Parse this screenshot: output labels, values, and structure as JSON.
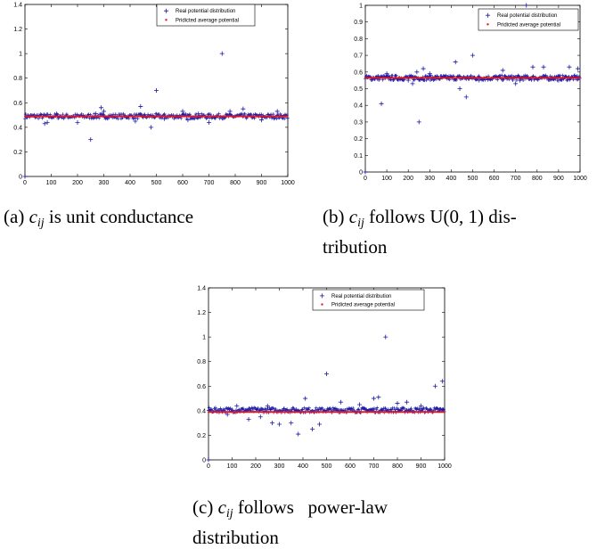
{
  "colors": {
    "real": "#1a1aa6",
    "predicted": "#e8141e",
    "axis": "#000000",
    "legend_border": "#000000"
  },
  "legend": {
    "real_label": "Real potential distribution",
    "predicted_label": "Pridicted average potential"
  },
  "captions": [
    {
      "tag": "(a)",
      "var": "c",
      "sub": "ij",
      "text": "is unit conductance",
      "text2": ""
    },
    {
      "tag": "(b)",
      "var": "c",
      "sub": "ij",
      "text": "follows U(0, 1) dis-",
      "text2": "tribution"
    },
    {
      "tag": "(c)",
      "var": "c",
      "sub": "ij",
      "text": "follows   power-law",
      "text2": "distribution"
    }
  ],
  "chart_data": [
    {
      "type": "scatter",
      "title": "",
      "xlabel": "",
      "ylabel": "",
      "xlim": [
        0,
        1000
      ],
      "ylim": [
        0,
        1.4
      ],
      "xticks": [
        0,
        100,
        200,
        300,
        400,
        500,
        600,
        700,
        800,
        900,
        1000
      ],
      "yticks": [
        0,
        0.2,
        0.4,
        0.6,
        0.8,
        1,
        1.2,
        1.4
      ],
      "ytick_labels": [
        "0",
        "0.2",
        "0.4",
        "0.6",
        "0.8",
        "1",
        "1.2",
        "1.4"
      ],
      "legend_position": "top-right",
      "series": [
        {
          "name": "Real potential distribution",
          "marker": "plus",
          "band": {
            "x_range": [
              0,
              1000
            ],
            "center": 0.49,
            "spread": 0.02
          },
          "points": [
            [
              0,
              0
            ],
            [
              75,
              0.43
            ],
            [
              85,
              0.44
            ],
            [
              120,
              0.51
            ],
            [
              200,
              0.44
            ],
            [
              250,
              0.3
            ],
            [
              270,
              0.51
            ],
            [
              290,
              0.56
            ],
            [
              300,
              0.53
            ],
            [
              420,
              0.45
            ],
            [
              440,
              0.57
            ],
            [
              480,
              0.4
            ],
            [
              500,
              0.7
            ],
            [
              530,
              0.47
            ],
            [
              600,
              0.53
            ],
            [
              620,
              0.46
            ],
            [
              660,
              0.51
            ],
            [
              700,
              0.44
            ],
            [
              750,
              1.0
            ],
            [
              780,
              0.53
            ],
            [
              830,
              0.55
            ],
            [
              900,
              0.46
            ],
            [
              960,
              0.53
            ],
            [
              990,
              0.5
            ]
          ]
        },
        {
          "name": "Pridicted average potential",
          "marker": "dot",
          "line": {
            "x_range": [
              0,
              1000
            ],
            "y": 0.49
          }
        }
      ]
    },
    {
      "type": "scatter",
      "title": "",
      "xlabel": "",
      "ylabel": "",
      "xlim": [
        0,
        1000
      ],
      "ylim": [
        0,
        1
      ],
      "xticks": [
        0,
        100,
        200,
        300,
        400,
        500,
        600,
        700,
        800,
        900,
        1000
      ],
      "yticks": [
        0,
        0.1,
        0.2,
        0.3,
        0.4,
        0.5,
        0.6,
        0.7,
        0.8,
        0.9,
        1
      ],
      "ytick_labels": [
        "0",
        "0.1",
        "0.2",
        "0.3",
        "0.4",
        "0.5",
        "0.6",
        "0.7",
        "0.8",
        "0.9",
        "1"
      ],
      "legend_position": "top-right",
      "series": [
        {
          "name": "Real potential distribution",
          "marker": "plus",
          "band": {
            "x_range": [
              0,
              1000
            ],
            "center": 0.565,
            "spread": 0.015
          },
          "points": [
            [
              0,
              0
            ],
            [
              75,
              0.41
            ],
            [
              100,
              0.59
            ],
            [
              200,
              0.55
            ],
            [
              220,
              0.53
            ],
            [
              240,
              0.6
            ],
            [
              250,
              0.3
            ],
            [
              270,
              0.62
            ],
            [
              300,
              0.59
            ],
            [
              420,
              0.66
            ],
            [
              440,
              0.5
            ],
            [
              470,
              0.45
            ],
            [
              500,
              0.7
            ],
            [
              530,
              0.55
            ],
            [
              640,
              0.61
            ],
            [
              700,
              0.53
            ],
            [
              720,
              0.55
            ],
            [
              750,
              1.0
            ],
            [
              780,
              0.63
            ],
            [
              830,
              0.63
            ],
            [
              900,
              0.55
            ],
            [
              950,
              0.63
            ],
            [
              990,
              0.62
            ]
          ]
        },
        {
          "name": "Pridicted average potential",
          "marker": "dot",
          "line": {
            "x_range": [
              0,
              1000
            ],
            "y": 0.565
          }
        }
      ]
    },
    {
      "type": "scatter",
      "title": "",
      "xlabel": "",
      "ylabel": "",
      "xlim": [
        0,
        1000
      ],
      "ylim": [
        0,
        1.4
      ],
      "xticks": [
        0,
        100,
        200,
        300,
        400,
        500,
        600,
        700,
        800,
        900,
        1000
      ],
      "yticks": [
        0,
        0.2,
        0.4,
        0.6,
        0.8,
        1,
        1.2,
        1.4
      ],
      "ytick_labels": [
        "0",
        "0.2",
        "0.4",
        "0.6",
        "0.8",
        "1",
        "1.2",
        "1.4"
      ],
      "legend_position": "top-right",
      "series": [
        {
          "name": "Real potential distribution",
          "marker": "plus",
          "band": {
            "x_range": [
              0,
              1000
            ],
            "center": 0.405,
            "spread": 0.02
          },
          "points": [
            [
              0,
              0
            ],
            [
              80,
              0.37
            ],
            [
              120,
              0.44
            ],
            [
              170,
              0.33
            ],
            [
              220,
              0.35
            ],
            [
              250,
              0.44
            ],
            [
              270,
              0.3
            ],
            [
              300,
              0.29
            ],
            [
              350,
              0.3
            ],
            [
              380,
              0.21
            ],
            [
              410,
              0.5
            ],
            [
              440,
              0.25
            ],
            [
              470,
              0.29
            ],
            [
              500,
              0.7
            ],
            [
              560,
              0.47
            ],
            [
              640,
              0.45
            ],
            [
              700,
              0.5
            ],
            [
              720,
              0.51
            ],
            [
              750,
              1.0
            ],
            [
              800,
              0.46
            ],
            [
              840,
              0.47
            ],
            [
              900,
              0.44
            ],
            [
              960,
              0.6
            ],
            [
              990,
              0.64
            ]
          ]
        },
        {
          "name": "Pridicted average potential",
          "marker": "dot",
          "line": {
            "x_range": [
              0,
              1000
            ],
            "y": 0.39
          }
        }
      ]
    }
  ]
}
